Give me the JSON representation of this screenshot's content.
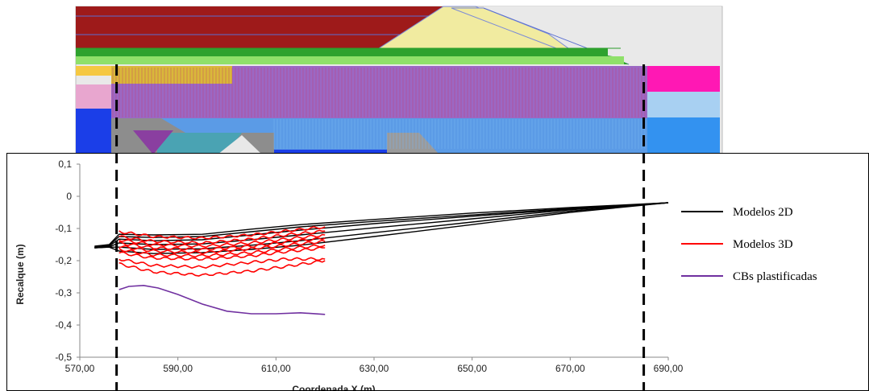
{
  "colors": {
    "embankment_red": "#9e1a1a",
    "fill_yellow": "#f1eba0",
    "layer_green": "#2ea22e",
    "layer_lightgreen": "#8fe06a",
    "soft_clay_purple": "#9b68c4",
    "sand_blue": "#5b9be6",
    "deep_blue": "#1b3ee8",
    "magenta": "#ff18b4",
    "series_2d": "#000000",
    "series_3d": "#ff0000",
    "series_cb": "#7030a0"
  },
  "chart_data": {
    "type": "line",
    "title": "",
    "xlabel": "Coordenada X (m)",
    "ylabel": "Recalque (m)",
    "xlim": [
      570,
      690
    ],
    "ylim": [
      -0.5,
      0.1
    ],
    "x_ticks": [
      "570,00",
      "590,00",
      "610,00",
      "630,00",
      "650,00",
      "670,00",
      "690,00"
    ],
    "y_ticks": [
      "0,1",
      "0",
      "-0,1",
      "-0,2",
      "-0,3",
      "-0,4",
      "-0,5"
    ],
    "grid": false,
    "legend_position": "right",
    "vertical_markers_x": [
      577.5,
      685
    ],
    "series": [
      {
        "name": "Modelos 2D",
        "color": "#000000",
        "lines": [
          [
            [
              573,
              -0.155
            ],
            [
              576,
              -0.15
            ],
            [
              578,
              -0.118
            ],
            [
              585,
              -0.12
            ],
            [
              595,
              -0.118
            ],
            [
              605,
              -0.102
            ],
            [
              615,
              -0.088
            ],
            [
              630,
              -0.072
            ],
            [
              650,
              -0.052
            ],
            [
              670,
              -0.035
            ],
            [
              690,
              -0.02
            ]
          ],
          [
            [
              573,
              -0.158
            ],
            [
              576,
              -0.152
            ],
            [
              578,
              -0.125
            ],
            [
              585,
              -0.128
            ],
            [
              595,
              -0.125
            ],
            [
              605,
              -0.11
            ],
            [
              615,
              -0.095
            ],
            [
              630,
              -0.078
            ],
            [
              650,
              -0.058
            ],
            [
              670,
              -0.038
            ],
            [
              690,
              -0.02
            ]
          ],
          [
            [
              573,
              -0.158
            ],
            [
              576,
              -0.155
            ],
            [
              578,
              -0.133
            ],
            [
              585,
              -0.138
            ],
            [
              595,
              -0.135
            ],
            [
              605,
              -0.12
            ],
            [
              615,
              -0.105
            ],
            [
              630,
              -0.085
            ],
            [
              650,
              -0.062
            ],
            [
              670,
              -0.04
            ],
            [
              690,
              -0.02
            ]
          ],
          [
            [
              573,
              -0.16
            ],
            [
              576,
              -0.157
            ],
            [
              578,
              -0.145
            ],
            [
              585,
              -0.15
            ],
            [
              595,
              -0.148
            ],
            [
              605,
              -0.135
            ],
            [
              615,
              -0.12
            ],
            [
              630,
              -0.098
            ],
            [
              650,
              -0.07
            ],
            [
              670,
              -0.042
            ],
            [
              690,
              -0.02
            ]
          ],
          [
            [
              573,
              -0.16
            ],
            [
              576,
              -0.158
            ],
            [
              578,
              -0.158
            ],
            [
              585,
              -0.165
            ],
            [
              595,
              -0.163
            ],
            [
              605,
              -0.152
            ],
            [
              615,
              -0.138
            ],
            [
              630,
              -0.113
            ],
            [
              650,
              -0.08
            ],
            [
              670,
              -0.046
            ],
            [
              690,
              -0.02
            ]
          ],
          [
            [
              573,
              -0.16
            ],
            [
              576,
              -0.158
            ],
            [
              578,
              -0.17
            ],
            [
              585,
              -0.178
            ],
            [
              595,
              -0.175
            ],
            [
              605,
              -0.165
            ],
            [
              615,
              -0.152
            ],
            [
              630,
              -0.125
            ],
            [
              650,
              -0.088
            ],
            [
              670,
              -0.05
            ],
            [
              690,
              -0.02
            ]
          ]
        ]
      },
      {
        "name": "Modelos 3D",
        "color": "#ff0000",
        "lines": [
          [
            [
              578,
              -0.11
            ],
            [
              585,
              -0.125
            ],
            [
              595,
              -0.13
            ],
            [
              605,
              -0.12
            ],
            [
              612,
              -0.108
            ],
            [
              620,
              -0.095
            ]
          ],
          [
            [
              578,
              -0.125
            ],
            [
              585,
              -0.14
            ],
            [
              595,
              -0.145
            ],
            [
              605,
              -0.133
            ],
            [
              612,
              -0.12
            ],
            [
              620,
              -0.108
            ]
          ],
          [
            [
              578,
              -0.135
            ],
            [
              585,
              -0.15
            ],
            [
              595,
              -0.155
            ],
            [
              605,
              -0.145
            ],
            [
              612,
              -0.133
            ],
            [
              620,
              -0.12
            ]
          ],
          [
            [
              578,
              -0.145
            ],
            [
              585,
              -0.16
            ],
            [
              595,
              -0.165
            ],
            [
              605,
              -0.155
            ],
            [
              612,
              -0.142
            ],
            [
              620,
              -0.13
            ]
          ],
          [
            [
              578,
              -0.155
            ],
            [
              585,
              -0.17
            ],
            [
              595,
              -0.175
            ],
            [
              605,
              -0.163
            ],
            [
              612,
              -0.152
            ],
            [
              620,
              -0.14
            ]
          ],
          [
            [
              578,
              -0.165
            ],
            [
              585,
              -0.182
            ],
            [
              595,
              -0.185
            ],
            [
              605,
              -0.175
            ],
            [
              612,
              -0.163
            ],
            [
              620,
              -0.152
            ]
          ],
          [
            [
              578,
              -0.175
            ],
            [
              585,
              -0.192
            ],
            [
              595,
              -0.195
            ],
            [
              605,
              -0.185
            ],
            [
              612,
              -0.172
            ],
            [
              620,
              -0.16
            ]
          ],
          [
            [
              578,
              -0.195
            ],
            [
              585,
              -0.215
            ],
            [
              595,
              -0.22
            ],
            [
              605,
              -0.205
            ],
            [
              612,
              -0.195
            ],
            [
              620,
              -0.195
            ]
          ],
          [
            [
              578,
              -0.21
            ],
            [
              585,
              -0.235
            ],
            [
              595,
              -0.245
            ],
            [
              605,
              -0.232
            ],
            [
              612,
              -0.218
            ],
            [
              620,
              -0.2
            ]
          ]
        ]
      },
      {
        "name": "CBs plastificadas",
        "color": "#7030a0",
        "lines": [
          [
            [
              578,
              -0.29
            ],
            [
              580,
              -0.28
            ],
            [
              583,
              -0.277
            ],
            [
              586,
              -0.285
            ],
            [
              590,
              -0.305
            ],
            [
              595,
              -0.335
            ],
            [
              600,
              -0.357
            ],
            [
              605,
              -0.365
            ],
            [
              610,
              -0.365
            ],
            [
              615,
              -0.362
            ],
            [
              620,
              -0.367
            ]
          ]
        ]
      }
    ]
  }
}
